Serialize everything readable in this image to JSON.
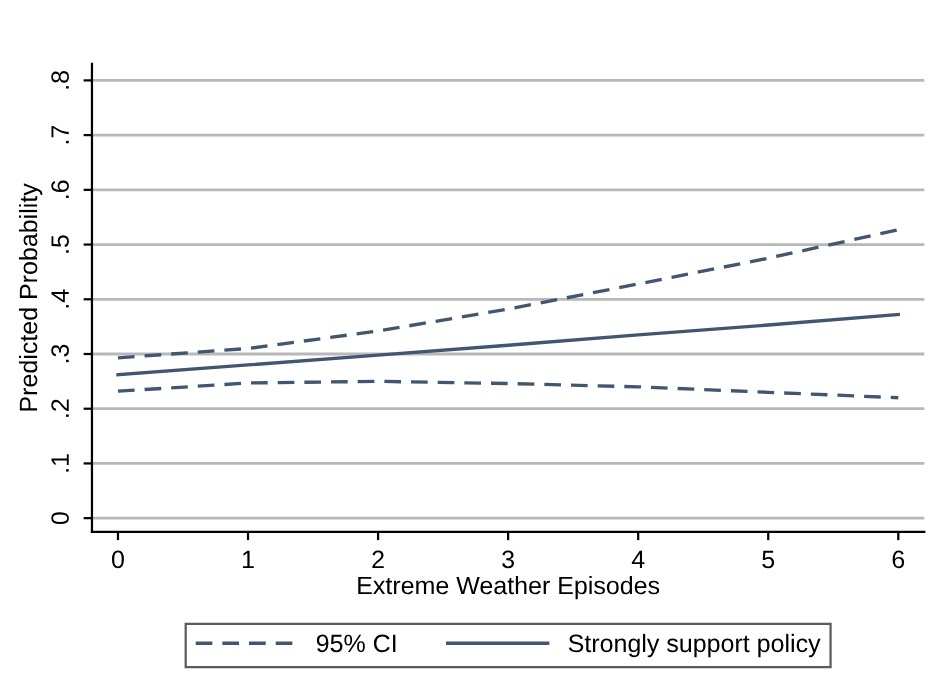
{
  "chart_data": {
    "type": "line",
    "xlabel": "Extreme Weather Episodes",
    "ylabel": "Predicted Probability",
    "x": [
      0,
      1,
      2,
      3,
      4,
      5,
      6
    ],
    "series": [
      {
        "name": "95% CI",
        "color": "#41566f",
        "line_style": "dashed",
        "values": [
          0.293,
          0.31,
          0.342,
          0.382,
          0.428,
          0.475,
          0.527
        ]
      },
      {
        "name": "Strongly support policy",
        "color": "#41566f",
        "line_style": "solid",
        "values": [
          0.262,
          0.28,
          0.298,
          0.316,
          0.335,
          0.353,
          0.372
        ]
      },
      {
        "color": "#41566f",
        "line_style": "dashed",
        "values": [
          0.232,
          0.247,
          0.25,
          0.246,
          0.24,
          0.23,
          0.22
        ]
      }
    ],
    "xlim": [
      -0.2,
      6.2
    ],
    "ylim": [
      -0.025,
      0.83
    ],
    "xticks": [
      0,
      1,
      2,
      3,
      4,
      5,
      6
    ],
    "yticks": [
      0,
      {
        "value": 0.1,
        "label": ".1"
      },
      {
        "value": 0.2,
        "label": ".2"
      },
      {
        "value": 0.3,
        "label": ".3"
      },
      {
        "value": 0.4,
        "label": ".4"
      },
      {
        "value": 0.5,
        "label": ".5"
      },
      {
        "value": 0.6,
        "label": ".6"
      },
      {
        "value": 0.7,
        "label": ".7"
      },
      {
        "value": 0.8,
        "label": ".8"
      }
    ],
    "grid": "y",
    "legend": "bottom",
    "marker": "none"
  }
}
